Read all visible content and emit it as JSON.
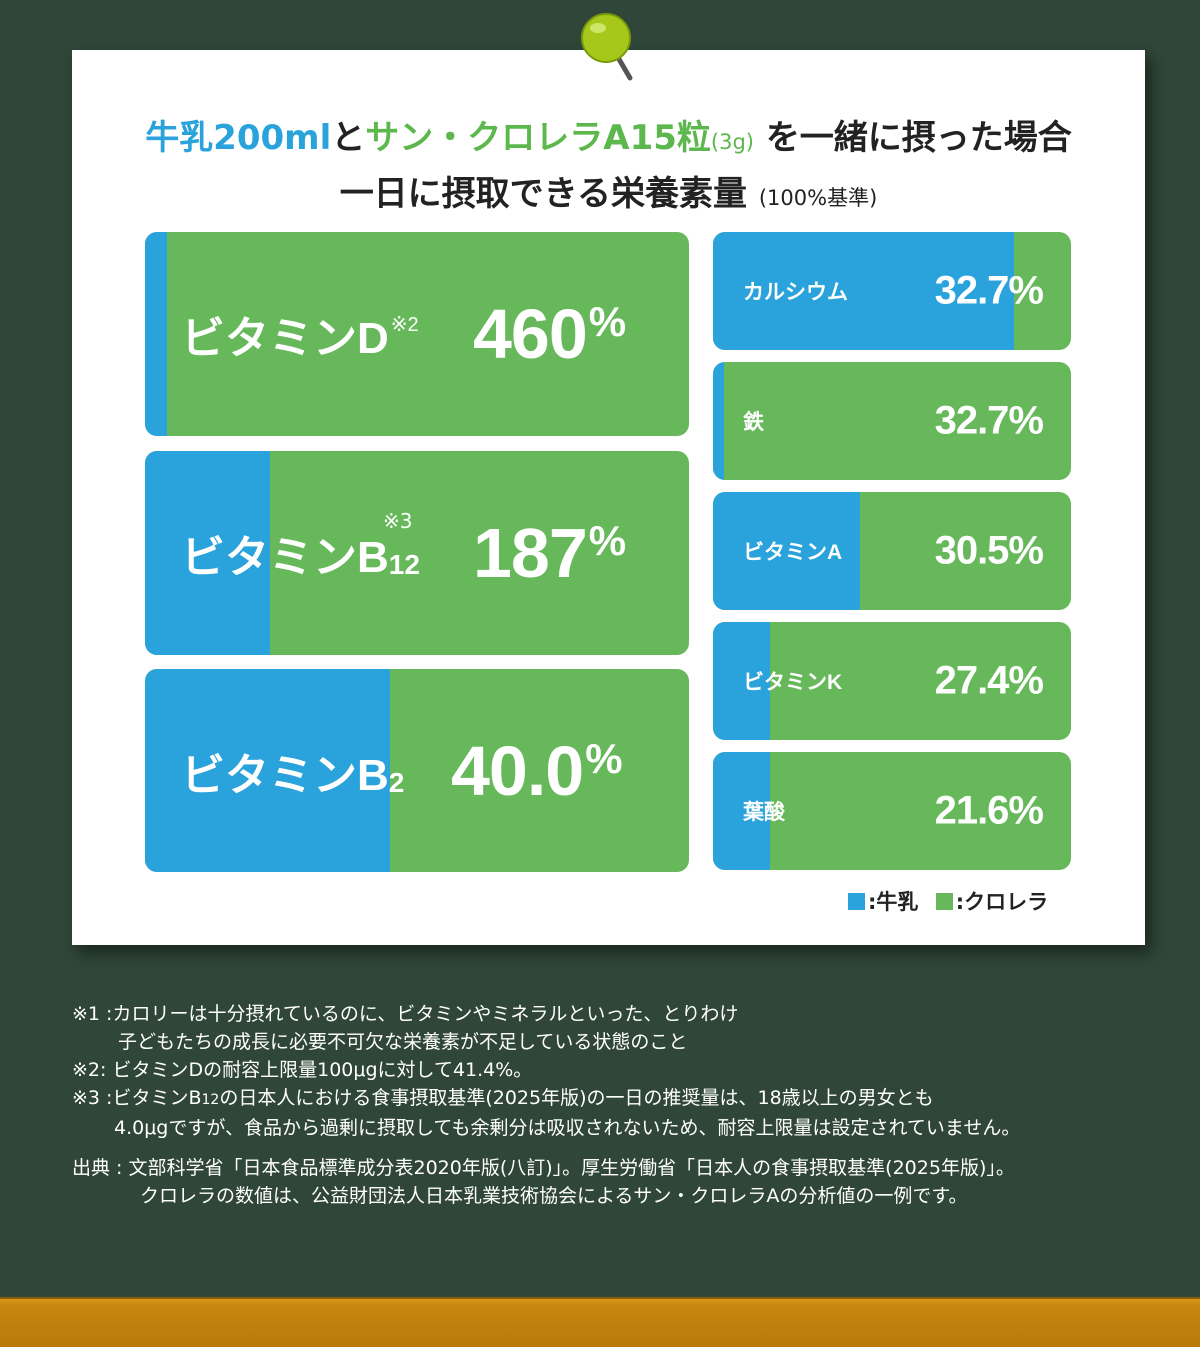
{
  "title": {
    "milk": "牛乳200ml",
    "to": "と",
    "chlorella": "サン・クロレラA15粒",
    "amount": "(3g)",
    "rest": "を一緒に摂った場合",
    "line2": "一日に摂取できる栄養素量",
    "basis": "(100%基準)"
  },
  "colors": {
    "milk": "#2aa3dd",
    "chlorella": "#66b85a"
  },
  "chart_data": {
    "type": "bar",
    "orientation": "horizontal-stacked-percent",
    "series": [
      {
        "name": "牛乳",
        "color": "#2aa3dd"
      },
      {
        "name": "クロレラ",
        "color": "#66b85a"
      }
    ],
    "items": [
      {
        "name": "ビタミンD",
        "note": "※2",
        "value_label": "460%",
        "value": 460,
        "milk_share": 0.04
      },
      {
        "name": "ビタミンB",
        "subscript": "12",
        "note": "※3",
        "value_label": "187%",
        "value": 187,
        "milk_share": 0.23
      },
      {
        "name": "ビタミンB",
        "subscript": "2",
        "value_label": "40.0%",
        "value": 40.0,
        "milk_share": 0.45
      },
      {
        "name": "カルシウム",
        "value_label": "32.7%",
        "value": 32.7,
        "milk_share": 0.84
      },
      {
        "name": "鉄",
        "value_label": "32.7%",
        "value": 32.7,
        "milk_share": 0.03
      },
      {
        "name": "ビタミンA",
        "value_label": "30.5%",
        "value": 30.5,
        "milk_share": 0.41
      },
      {
        "name": "ビタミンK",
        "value_label": "27.4%",
        "value": 27.4,
        "milk_share": 0.16
      },
      {
        "name": "葉酸",
        "value_label": "21.6%",
        "value": 21.6,
        "milk_share": 0.16
      }
    ]
  },
  "legend": {
    "milk": ":牛乳",
    "chlorella": ":クロレラ"
  },
  "notes": {
    "n1_label": "※1 :",
    "n1_line1": "カロリーは十分摂れているのに、ビタミンやミネラルといった、とりわけ",
    "n1_line2": "子どもたちの成長に必要不可欠な栄養素が不足している状態のこと",
    "n2_label": "※2:",
    "n2_text": "ビタミンDの耐容上限量100μgに対して41.4%。",
    "n3_label": "※3 :",
    "n3_line1a": "ビタミンB",
    "n3_line1b": "12",
    "n3_line1c": "の日本人における食事摂取基準(2025年版)の一日の推奨量は、18歳以上の男女とも",
    "n3_line2": "4.0μgですが、食品から過剰に摂取しても余剰分は吸収されないため、耐容上限量は設定されていません。",
    "source_label": "出典 :",
    "source_line1": "文部科学省「日本食品標準成分表2020年版(八訂)」。厚生労働省「日本人の食事摂取基準(2025年版)」。",
    "source_line2": "クロレラの数値は、公益財団法人日本乳業技術協会によるサン・クロレラAの分析値の一例です。"
  }
}
